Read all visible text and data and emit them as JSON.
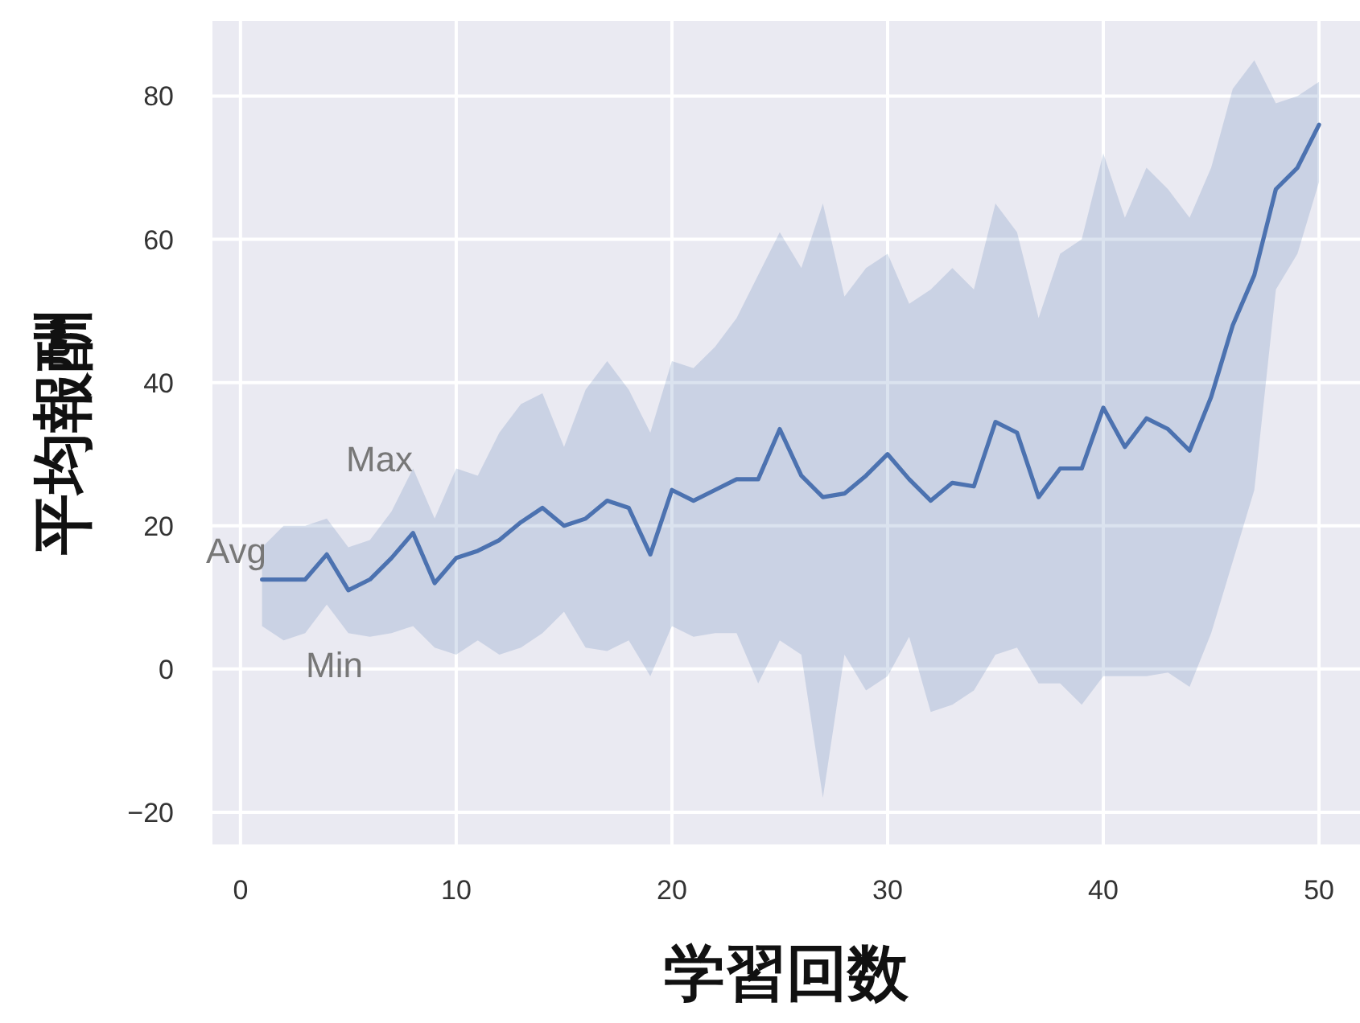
{
  "chart_data": {
    "type": "line",
    "xlabel": "学習回数",
    "ylabel": "平均報酬",
    "x": [
      1,
      2,
      3,
      4,
      5,
      6,
      7,
      8,
      9,
      10,
      11,
      12,
      13,
      14,
      15,
      16,
      17,
      18,
      19,
      20,
      21,
      22,
      23,
      24,
      25,
      26,
      27,
      28,
      29,
      30,
      31,
      32,
      33,
      34,
      35,
      36,
      37,
      38,
      39,
      40,
      41,
      42,
      43,
      44,
      45,
      46,
      47,
      48,
      49,
      50
    ],
    "series": [
      {
        "color": "#4c72b0",
        "values": [
          12.5,
          12.5,
          12.5,
          16,
          11,
          12.5,
          15.5,
          19,
          12,
          15.5,
          16.5,
          18,
          20.5,
          22.5,
          20,
          21,
          23.5,
          22.5,
          16,
          25,
          23.5,
          25,
          26.5,
          26.5,
          33.5,
          27,
          24,
          24.5,
          27,
          30,
          26.5,
          23.5,
          26,
          25.5,
          34.5,
          33,
          24,
          28,
          28,
          36.5,
          31,
          35,
          33.5,
          30.5,
          38,
          48,
          55,
          67,
          70,
          76
        ],
        "upper": [
          17,
          20,
          20,
          21,
          17,
          18,
          22,
          28,
          21,
          28,
          27,
          33,
          37,
          38.5,
          31,
          39,
          43,
          39,
          33,
          43,
          42,
          45,
          49,
          55,
          61,
          56,
          65,
          52,
          56,
          58,
          51,
          53,
          56,
          53,
          65,
          61,
          49,
          58,
          60,
          72,
          63,
          70,
          67,
          63,
          70,
          81,
          85,
          79,
          80,
          82
        ],
        "lower": [
          6,
          4,
          5,
          9,
          5,
          4.5,
          5,
          6,
          3,
          2,
          4,
          2,
          3,
          5,
          8,
          3,
          2.5,
          4,
          -1,
          6,
          4.5,
          5,
          5,
          -2,
          4,
          2,
          -18,
          2,
          -3,
          -1,
          4.5,
          -6,
          -5,
          -3,
          2,
          3,
          -2,
          -2,
          -5,
          -1,
          -1,
          -1,
          -0.5,
          -2.5,
          5,
          15,
          25,
          53,
          58,
          68
        ]
      }
    ],
    "annotations": [
      "Max",
      "Avg",
      "Min"
    ],
    "xlim": [
      -1.3,
      51.9
    ],
    "ylim": [
      -24.5,
      90.5
    ],
    "xticks": [
      0,
      10,
      20,
      30,
      40,
      50
    ],
    "yticks": [
      -20,
      0,
      20,
      40,
      60,
      80
    ],
    "grid": true
  }
}
